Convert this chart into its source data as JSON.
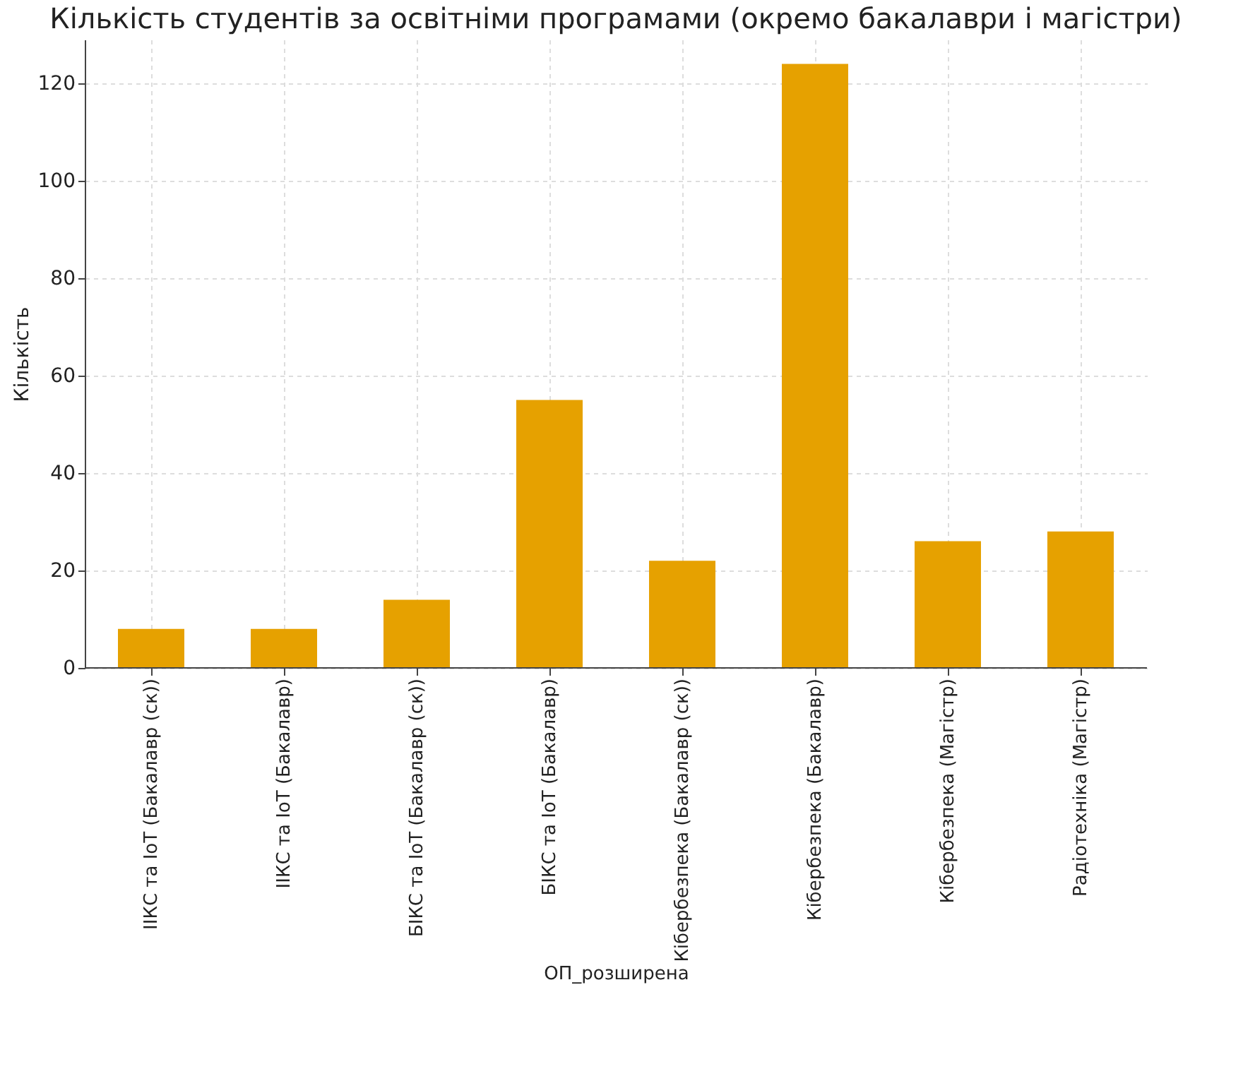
{
  "chart_data": {
    "type": "bar",
    "title": "Кількість студентів за освітніми програмами (окремо бакалаври і магістри)",
    "xlabel": "ОП_розширена",
    "ylabel": "Кількість",
    "categories": [
      "ІІКС та IoT (Бакалавр (ск))",
      "ІІКС та IoT (Бакалавр)",
      "БІКС та IoT (Бакалавр (ск))",
      "БІКС та IoT (Бакалавр)",
      "Кібербезпека (Бакалавр (ск))",
      "Кібербезпека (Бакалавр)",
      "Кібербезпека (Магістр)",
      "Радіотехніка (Магістр)"
    ],
    "values": [
      8,
      8,
      14,
      55,
      22,
      124,
      26,
      28
    ],
    "color": "#e6a100",
    "ylim": [
      0,
      129
    ],
    "yticks": [
      0,
      20,
      40,
      60,
      80,
      100,
      120
    ],
    "grid": true
  }
}
